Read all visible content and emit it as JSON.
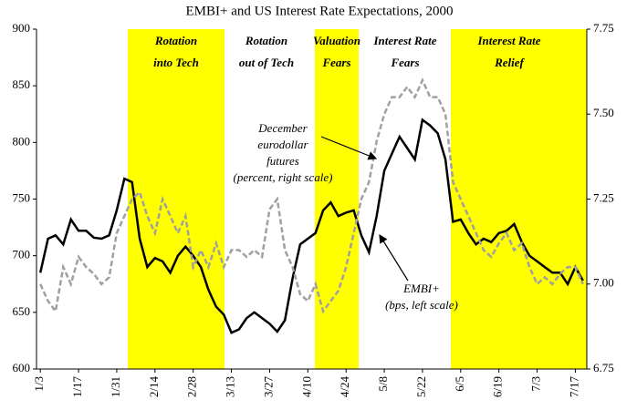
{
  "chart_data": {
    "type": "line",
    "title": "EMBI+ and US Interest Rate Expectations, 2000",
    "categories": [
      "1/3",
      null,
      null,
      null,
      null,
      "1/17",
      null,
      null,
      null,
      null,
      "1/31",
      null,
      null,
      null,
      null,
      "2/14",
      null,
      null,
      null,
      null,
      "2/28",
      null,
      null,
      null,
      null,
      "3/13",
      null,
      null,
      null,
      null,
      "3/27",
      null,
      null,
      null,
      null,
      "4/10",
      null,
      null,
      null,
      null,
      "4/24",
      null,
      null,
      null,
      null,
      "5/8",
      null,
      null,
      null,
      null,
      "5/22",
      null,
      null,
      null,
      null,
      "6/5",
      null,
      null,
      null,
      null,
      "6/19",
      null,
      null,
      null,
      null,
      "7/3",
      null,
      null,
      null,
      null,
      "7/17",
      null
    ],
    "series": [
      {
        "name": "EMBI+",
        "color": "#000000",
        "axis": "y",
        "values": [
          685,
          715,
          718,
          710,
          732,
          722,
          722,
          716,
          715,
          718,
          740,
          768,
          765,
          715,
          690,
          698,
          695,
          685,
          700,
          708,
          700,
          690,
          670,
          655,
          648,
          632,
          635,
          645,
          650,
          645,
          640,
          633,
          643,
          680,
          710,
          715,
          720,
          740,
          747,
          735,
          738,
          740,
          718,
          703,
          735,
          775,
          790,
          805,
          795,
          785,
          820,
          815,
          808,
          785,
          730,
          732,
          720,
          710,
          715,
          712,
          720,
          722,
          728,
          712,
          700,
          695,
          690,
          685,
          685,
          675,
          690,
          678
        ]
      },
      {
        "name": "December eurodollar futures",
        "color": "#a0a0a0",
        "axis": "y2",
        "values": [
          7.0,
          6.95,
          6.92,
          7.05,
          7.0,
          7.08,
          7.05,
          7.03,
          7.0,
          7.02,
          7.15,
          7.2,
          7.25,
          7.27,
          7.2,
          7.15,
          7.25,
          7.2,
          7.15,
          7.2,
          7.05,
          7.1,
          7.05,
          7.12,
          7.05,
          7.1,
          7.1,
          7.08,
          7.1,
          7.08,
          7.22,
          7.25,
          7.1,
          7.05,
          6.97,
          6.95,
          7.0,
          6.92,
          6.95,
          6.98,
          7.05,
          7.15,
          7.25,
          7.3,
          7.42,
          7.5,
          7.55,
          7.55,
          7.58,
          7.55,
          7.6,
          7.55,
          7.55,
          7.5,
          7.3,
          7.25,
          7.2,
          7.15,
          7.1,
          7.08,
          7.12,
          7.15,
          7.1,
          7.12,
          7.05,
          7.0,
          7.02,
          7.0,
          7.03,
          7.05,
          7.05,
          7.0
        ]
      }
    ],
    "ylim": [
      600,
      900
    ],
    "yticks": [
      600,
      650,
      700,
      750,
      800,
      850,
      900
    ],
    "y2lim": [
      6.75,
      7.75
    ],
    "y2ticks": [
      6.75,
      {
        "value": 7,
        "label": "7.00"
      },
      7.25,
      {
        "value": 7.5,
        "label": "7.50"
      },
      7.75
    ],
    "periods": [
      {
        "label": [
          "Rotation",
          "into Tech"
        ]
      },
      {
        "label": [
          "Rotation",
          "out of Tech"
        ]
      },
      {
        "label": [
          "Valuation",
          "Fears"
        ]
      },
      {
        "label": [
          "Interest Rate",
          "Fears"
        ]
      },
      {
        "label": [
          "Interest Rate",
          "Relief"
        ]
      }
    ],
    "annotations": [
      {
        "text": [
          "December",
          "eurodollar",
          "futures",
          "(percent, right scale)"
        ]
      },
      {
        "text": [
          "EMBI+",
          "(bps, left scale)"
        ]
      }
    ]
  }
}
